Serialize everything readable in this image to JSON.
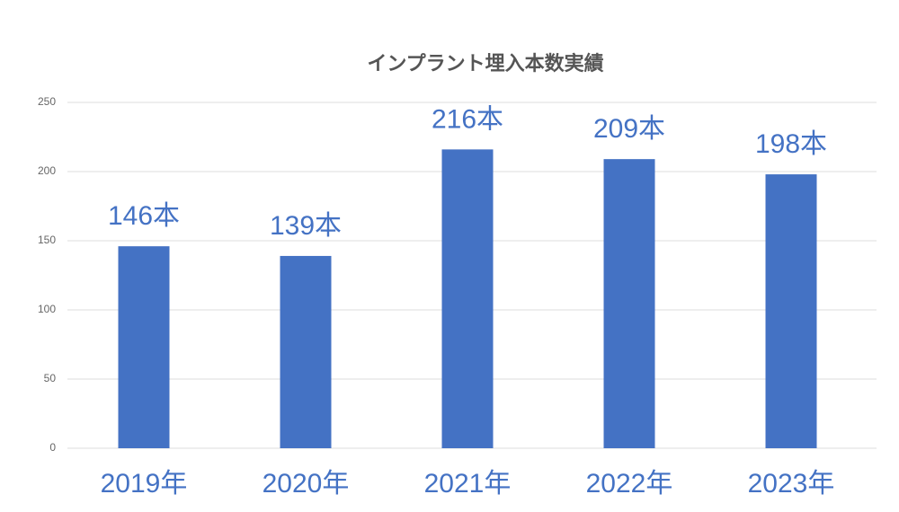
{
  "chart_data": {
    "type": "bar",
    "title": "インプラント埋入本数実績",
    "categories": [
      "2019年",
      "2020年",
      "2021年",
      "2022年",
      "2023年"
    ],
    "values": [
      146,
      139,
      216,
      209,
      198
    ],
    "value_labels": [
      "146本",
      "139本",
      "216本",
      "209本",
      "198本"
    ],
    "color": "#4472c4",
    "ylim": [
      0,
      250
    ],
    "yticks": [
      0,
      50,
      100,
      150,
      200,
      250
    ],
    "grid": true
  }
}
